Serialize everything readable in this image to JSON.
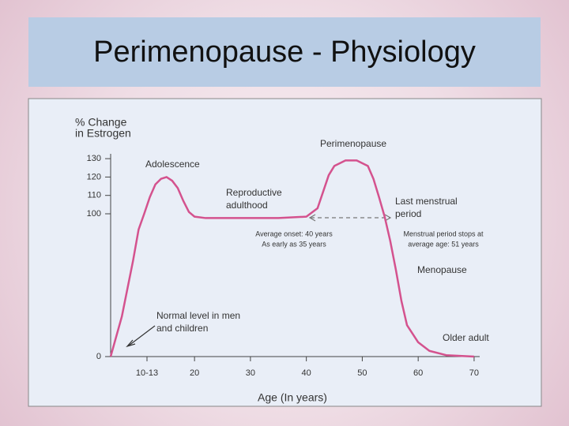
{
  "title": "Perimenopause - Physiology",
  "chart_data": {
    "type": "line",
    "ylabel": [
      "% Change",
      "in Estrogen"
    ],
    "xlabel": "Age (In years)",
    "xlim": [
      5,
      71
    ],
    "ylim": [
      0,
      130
    ],
    "xticks": [
      {
        "value": 11.5,
        "label": "10-13"
      },
      20,
      30,
      40,
      50,
      60,
      70
    ],
    "yticks": [
      0,
      100,
      110,
      120,
      130
    ],
    "series": [
      {
        "color": "#d4528e",
        "x": [
          5,
          7,
          9,
          10,
          11,
          12,
          13,
          14,
          15,
          16,
          17,
          18,
          19,
          20,
          22,
          30,
          35,
          40,
          42,
          43,
          44,
          45,
          47,
          49,
          51,
          52,
          53,
          54,
          55,
          56,
          57,
          58,
          60,
          62,
          65,
          70
        ],
        "values": [
          0,
          28,
          67,
          89,
          100,
          109,
          116,
          119,
          120,
          118,
          114,
          107,
          101,
          98,
          97,
          97,
          97,
          98,
          103,
          112,
          121,
          126,
          129,
          129,
          126,
          119,
          109,
          98,
          81,
          61,
          39,
          22,
          10,
          4,
          1,
          0
        ]
      }
    ],
    "annotations": [
      [
        "Adolescence"
      ],
      [
        "Reproductive",
        "adulthood"
      ],
      [
        "Perimenopause"
      ],
      [
        "Last menstrual",
        "period"
      ],
      [
        "Average onset: 40 years",
        "As early as 35 years"
      ],
      [
        "Menstrual period stops at",
        "average age: 51 years"
      ],
      [
        "Menopause"
      ],
      [
        "Normal level in men",
        "and children"
      ],
      [
        "Older adult"
      ]
    ]
  }
}
